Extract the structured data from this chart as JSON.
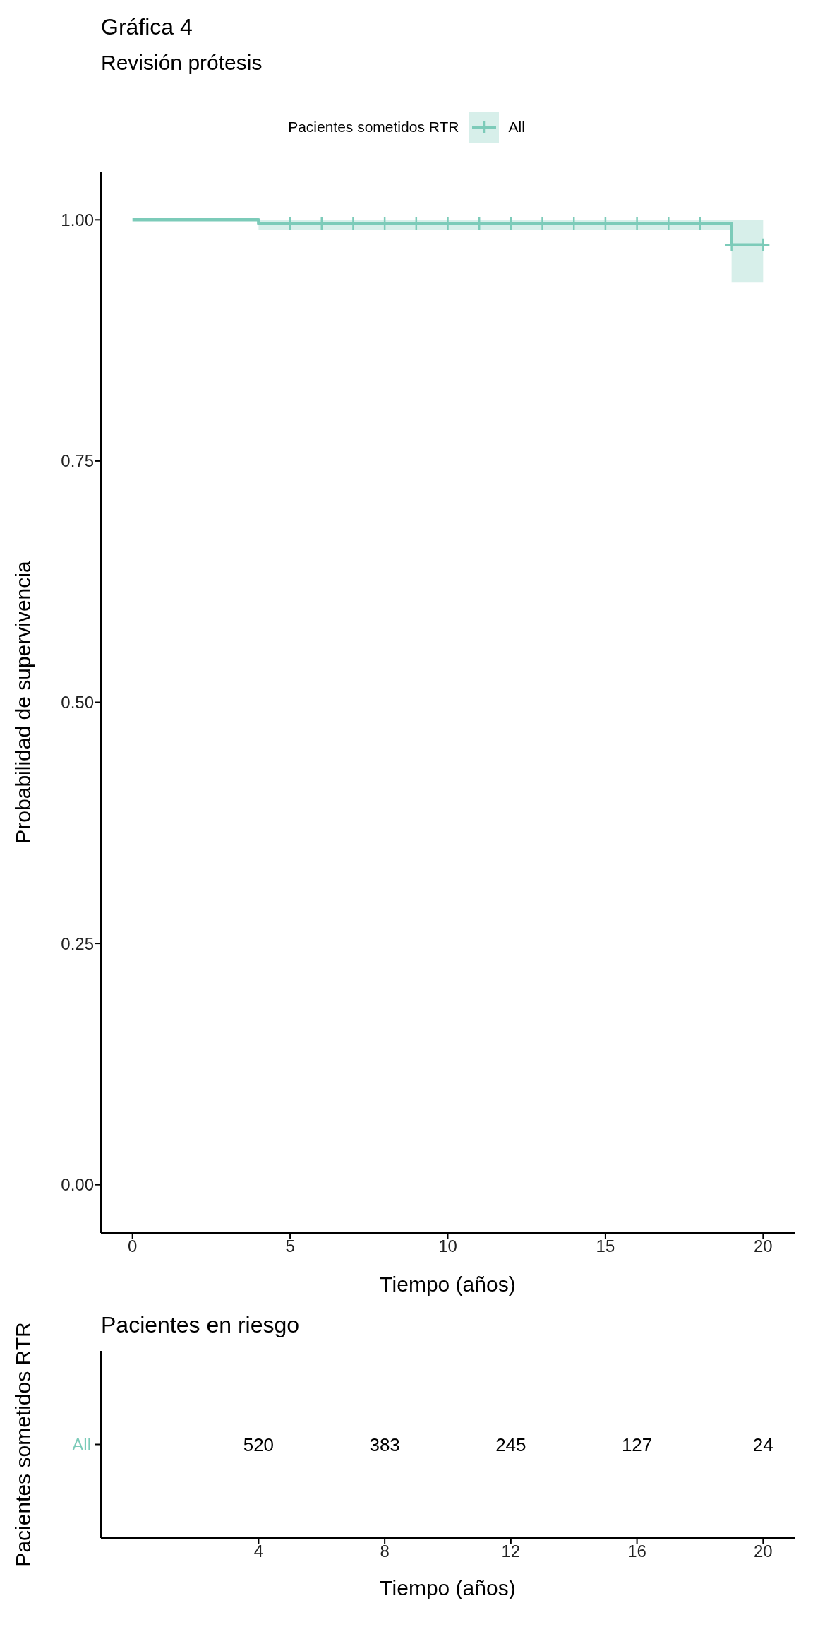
{
  "chart_data": [
    {
      "type": "step",
      "title": "Gráfica 4",
      "subtitle": "Revisión prótesis",
      "xlabel": "Tiempo (años)",
      "ylabel": "Probabilidad de supervivencia",
      "legend_title": "Pacientes sometidos RTR",
      "legend": "top",
      "grid": false,
      "xlim": [
        -1,
        21
      ],
      "xticks": [
        0,
        5,
        10,
        15,
        20
      ],
      "ylim": [
        -0.05,
        1.05
      ],
      "yticks": [
        {
          "value": 0,
          "label": "0.00"
        },
        {
          "value": 0.25,
          "label": "0.25"
        },
        {
          "value": 0.5,
          "label": "0.50"
        },
        {
          "value": 0.75,
          "label": "0.75"
        },
        {
          "value": 1,
          "label": "1.00"
        }
      ],
      "series": [
        {
          "name": "All",
          "color": "#7ccbb9",
          "x": [
            0,
            4,
            19,
            20
          ],
          "values": [
            1.0,
            0.996,
            0.974,
            0.974
          ],
          "lower": [
            1.0,
            0.99,
            0.935,
            0.935
          ],
          "upper": [
            1.0,
            1.0,
            1.0,
            1.0
          ],
          "line_style": "solid",
          "marker": "none"
        },
        {
          "type": "scatter",
          "color": "#7ccbb9",
          "marker": "cross",
          "x": [
            5,
            6,
            7,
            8,
            9,
            10,
            11,
            12,
            13,
            14,
            15,
            16,
            17,
            18,
            19,
            20
          ],
          "values": [
            0.996,
            0.996,
            0.996,
            0.996,
            0.996,
            0.996,
            0.996,
            0.996,
            0.996,
            0.996,
            0.996,
            0.996,
            0.996,
            0.996,
            0.974,
            0.974
          ]
        }
      ]
    },
    {
      "type": "heatmap",
      "title": "Pacientes en riesgo",
      "xlabel": "Tiempo (años)",
      "ylabel": "Pacientes sometidos RTR",
      "categories": [
        "4",
        "8",
        "12",
        "16",
        "20"
      ],
      "y_categories": [
        "All"
      ],
      "color": "#7ccbb9",
      "data_labels": true,
      "cells": [
        [
          520,
          383,
          245,
          127,
          24
        ]
      ]
    }
  ]
}
